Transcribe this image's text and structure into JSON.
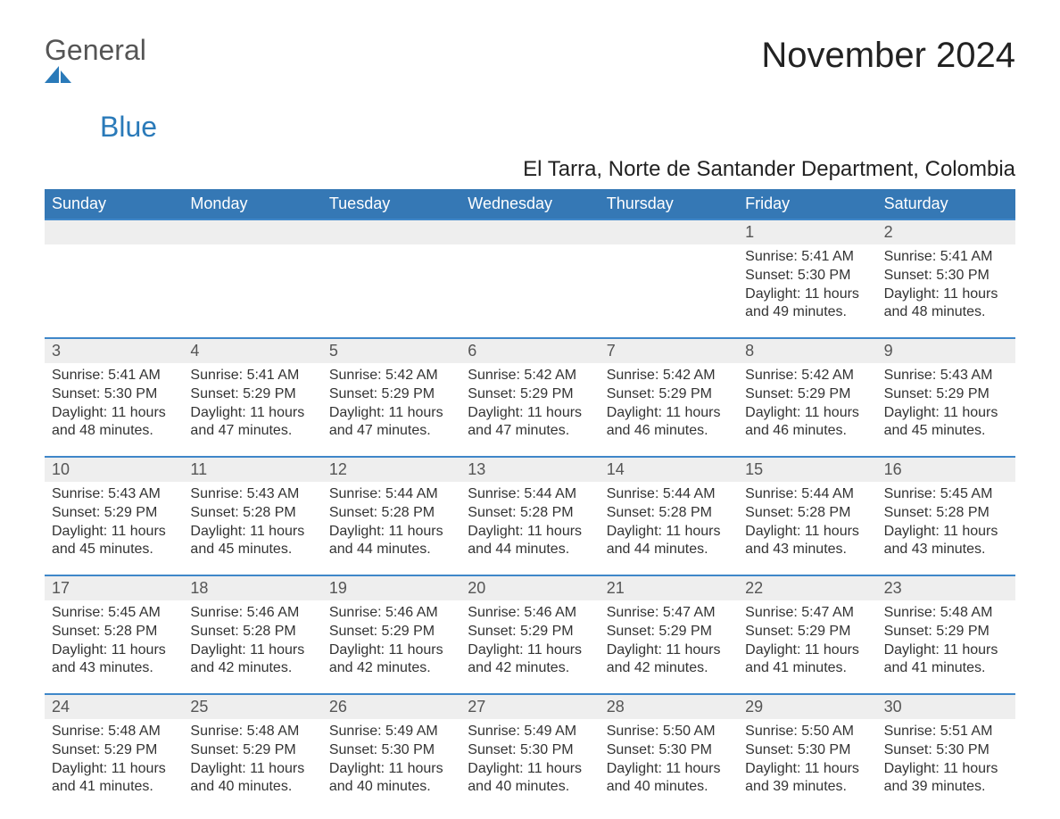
{
  "brand": {
    "text1": "General",
    "text2": "Blue"
  },
  "title": "November 2024",
  "subtitle": "El Tarra, Norte de Santander Department, Colombia",
  "weekdays": [
    "Sunday",
    "Monday",
    "Tuesday",
    "Wednesday",
    "Thursday",
    "Friday",
    "Saturday"
  ],
  "colors": {
    "brand_blue": "#2a7ab9",
    "header_blue": "#3578b5",
    "row_border_blue": "#3f87c9",
    "day_bg": "#eeeeee",
    "text_dark": "#333333",
    "text_gray": "#555555",
    "page_bg": "#ffffff"
  },
  "layout": {
    "columns": 7,
    "body_fontsize": 16,
    "daynum_fontsize": 18,
    "weekday_fontsize": 18,
    "title_fontsize": 40,
    "subtitle_fontsize": 24
  },
  "weeks": [
    {
      "days": [
        {
          "num": "",
          "lines": []
        },
        {
          "num": "",
          "lines": []
        },
        {
          "num": "",
          "lines": []
        },
        {
          "num": "",
          "lines": []
        },
        {
          "num": "",
          "lines": []
        },
        {
          "num": "1",
          "lines": [
            "Sunrise: 5:41 AM",
            "Sunset: 5:30 PM",
            "Daylight: 11 hours",
            "and 49 minutes."
          ]
        },
        {
          "num": "2",
          "lines": [
            "Sunrise: 5:41 AM",
            "Sunset: 5:30 PM",
            "Daylight: 11 hours",
            "and 48 minutes."
          ]
        }
      ]
    },
    {
      "days": [
        {
          "num": "3",
          "lines": [
            "Sunrise: 5:41 AM",
            "Sunset: 5:30 PM",
            "Daylight: 11 hours",
            "and 48 minutes."
          ]
        },
        {
          "num": "4",
          "lines": [
            "Sunrise: 5:41 AM",
            "Sunset: 5:29 PM",
            "Daylight: 11 hours",
            "and 47 minutes."
          ]
        },
        {
          "num": "5",
          "lines": [
            "Sunrise: 5:42 AM",
            "Sunset: 5:29 PM",
            "Daylight: 11 hours",
            "and 47 minutes."
          ]
        },
        {
          "num": "6",
          "lines": [
            "Sunrise: 5:42 AM",
            "Sunset: 5:29 PM",
            "Daylight: 11 hours",
            "and 47 minutes."
          ]
        },
        {
          "num": "7",
          "lines": [
            "Sunrise: 5:42 AM",
            "Sunset: 5:29 PM",
            "Daylight: 11 hours",
            "and 46 minutes."
          ]
        },
        {
          "num": "8",
          "lines": [
            "Sunrise: 5:42 AM",
            "Sunset: 5:29 PM",
            "Daylight: 11 hours",
            "and 46 minutes."
          ]
        },
        {
          "num": "9",
          "lines": [
            "Sunrise: 5:43 AM",
            "Sunset: 5:29 PM",
            "Daylight: 11 hours",
            "and 45 minutes."
          ]
        }
      ]
    },
    {
      "days": [
        {
          "num": "10",
          "lines": [
            "Sunrise: 5:43 AM",
            "Sunset: 5:29 PM",
            "Daylight: 11 hours",
            "and 45 minutes."
          ]
        },
        {
          "num": "11",
          "lines": [
            "Sunrise: 5:43 AM",
            "Sunset: 5:28 PM",
            "Daylight: 11 hours",
            "and 45 minutes."
          ]
        },
        {
          "num": "12",
          "lines": [
            "Sunrise: 5:44 AM",
            "Sunset: 5:28 PM",
            "Daylight: 11 hours",
            "and 44 minutes."
          ]
        },
        {
          "num": "13",
          "lines": [
            "Sunrise: 5:44 AM",
            "Sunset: 5:28 PM",
            "Daylight: 11 hours",
            "and 44 minutes."
          ]
        },
        {
          "num": "14",
          "lines": [
            "Sunrise: 5:44 AM",
            "Sunset: 5:28 PM",
            "Daylight: 11 hours",
            "and 44 minutes."
          ]
        },
        {
          "num": "15",
          "lines": [
            "Sunrise: 5:44 AM",
            "Sunset: 5:28 PM",
            "Daylight: 11 hours",
            "and 43 minutes."
          ]
        },
        {
          "num": "16",
          "lines": [
            "Sunrise: 5:45 AM",
            "Sunset: 5:28 PM",
            "Daylight: 11 hours",
            "and 43 minutes."
          ]
        }
      ]
    },
    {
      "days": [
        {
          "num": "17",
          "lines": [
            "Sunrise: 5:45 AM",
            "Sunset: 5:28 PM",
            "Daylight: 11 hours",
            "and 43 minutes."
          ]
        },
        {
          "num": "18",
          "lines": [
            "Sunrise: 5:46 AM",
            "Sunset: 5:28 PM",
            "Daylight: 11 hours",
            "and 42 minutes."
          ]
        },
        {
          "num": "19",
          "lines": [
            "Sunrise: 5:46 AM",
            "Sunset: 5:29 PM",
            "Daylight: 11 hours",
            "and 42 minutes."
          ]
        },
        {
          "num": "20",
          "lines": [
            "Sunrise: 5:46 AM",
            "Sunset: 5:29 PM",
            "Daylight: 11 hours",
            "and 42 minutes."
          ]
        },
        {
          "num": "21",
          "lines": [
            "Sunrise: 5:47 AM",
            "Sunset: 5:29 PM",
            "Daylight: 11 hours",
            "and 42 minutes."
          ]
        },
        {
          "num": "22",
          "lines": [
            "Sunrise: 5:47 AM",
            "Sunset: 5:29 PM",
            "Daylight: 11 hours",
            "and 41 minutes."
          ]
        },
        {
          "num": "23",
          "lines": [
            "Sunrise: 5:48 AM",
            "Sunset: 5:29 PM",
            "Daylight: 11 hours",
            "and 41 minutes."
          ]
        }
      ]
    },
    {
      "days": [
        {
          "num": "24",
          "lines": [
            "Sunrise: 5:48 AM",
            "Sunset: 5:29 PM",
            "Daylight: 11 hours",
            "and 41 minutes."
          ]
        },
        {
          "num": "25",
          "lines": [
            "Sunrise: 5:48 AM",
            "Sunset: 5:29 PM",
            "Daylight: 11 hours",
            "and 40 minutes."
          ]
        },
        {
          "num": "26",
          "lines": [
            "Sunrise: 5:49 AM",
            "Sunset: 5:30 PM",
            "Daylight: 11 hours",
            "and 40 minutes."
          ]
        },
        {
          "num": "27",
          "lines": [
            "Sunrise: 5:49 AM",
            "Sunset: 5:30 PM",
            "Daylight: 11 hours",
            "and 40 minutes."
          ]
        },
        {
          "num": "28",
          "lines": [
            "Sunrise: 5:50 AM",
            "Sunset: 5:30 PM",
            "Daylight: 11 hours",
            "and 40 minutes."
          ]
        },
        {
          "num": "29",
          "lines": [
            "Sunrise: 5:50 AM",
            "Sunset: 5:30 PM",
            "Daylight: 11 hours",
            "and 39 minutes."
          ]
        },
        {
          "num": "30",
          "lines": [
            "Sunrise: 5:51 AM",
            "Sunset: 5:30 PM",
            "Daylight: 11 hours",
            "and 39 minutes."
          ]
        }
      ]
    }
  ]
}
